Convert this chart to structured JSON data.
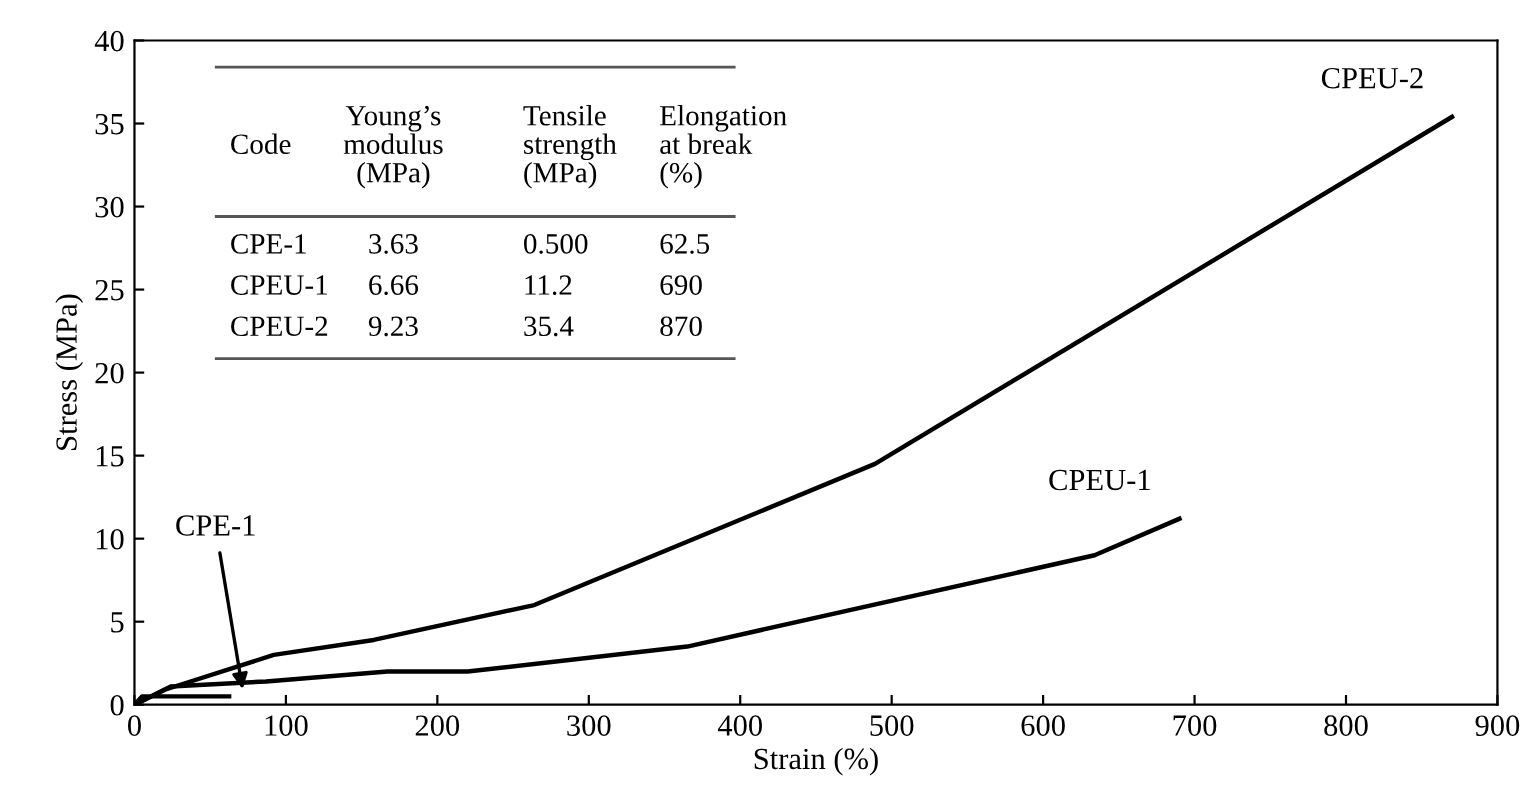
{
  "chart_data": {
    "type": "line",
    "xlabel": "Strain (%)",
    "ylabel": "Stress (MPa)",
    "xlim": [
      0,
      900
    ],
    "xticks": [
      0,
      100,
      200,
      300,
      400,
      500,
      600,
      700,
      800,
      900
    ],
    "ylim": [
      0,
      40
    ],
    "yticks": [
      0,
      5,
      10,
      15,
      20,
      25,
      30,
      35,
      40
    ],
    "grid": false,
    "legend": false,
    "marker": "none",
    "line_style": "solid",
    "series": [
      {
        "color": "#000000",
        "x": [
          0,
          5,
          62.5
        ],
        "values": [
          0,
          0.5,
          0.5
        ]
      },
      {
        "name": "CPEU-1",
        "color": "#000000",
        "x": [
          0,
          24,
          87,
          167,
          220,
          365,
          634,
          690
        ],
        "values": [
          0,
          1.1,
          1.4,
          2.0,
          2.0,
          3.5,
          9.0,
          11.2
        ]
      },
      {
        "name": "CPEU-2",
        "color": "#000000",
        "x": [
          0,
          20,
          92,
          158,
          264,
          489,
          870
        ],
        "values": [
          0,
          0.9,
          3.0,
          3.9,
          6.0,
          14.5,
          35.4
        ]
      }
    ],
    "annotations": [
      {
        "text": "CPE-1",
        "x": 72,
        "y": 0.6
      },
      "Code",
      "Young’s\nmodulus\n(MPa)",
      "Tensile\nstrength\n(MPa)",
      "Elongation\nat break\n(%)",
      "CPE-1",
      "3.63",
      "0.500",
      "62.5",
      "CPEU-1",
      "6.66",
      "11.2",
      "690",
      "CPEU-2",
      "9.23",
      "35.4",
      "870"
    ]
  }
}
